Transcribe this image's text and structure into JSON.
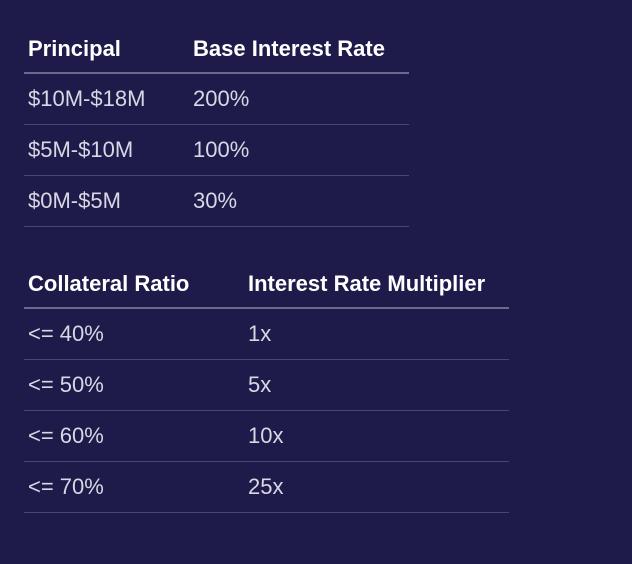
{
  "background_color": "#1e1b4b",
  "text_color": "#d8d7e4",
  "header_text_color": "#ffffff",
  "header_border_color": "#6b6a8a",
  "row_border_color": "#4a4870",
  "font_size_header": 22,
  "font_size_cell": 22,
  "table1": {
    "columns": [
      "Principal",
      "Base Interest Rate"
    ],
    "rows": [
      [
        "$10M-$18M",
        "200%"
      ],
      [
        "$5M-$10M",
        "100%"
      ],
      [
        "$0M-$5M",
        "30%"
      ]
    ]
  },
  "table2": {
    "columns": [
      "Collateral Ratio",
      "Interest Rate Multiplier"
    ],
    "rows": [
      [
        "<= 40%",
        "1x"
      ],
      [
        "<= 50%",
        "5x"
      ],
      [
        "<= 60%",
        "10x"
      ],
      [
        "<= 70%",
        "25x"
      ]
    ]
  }
}
